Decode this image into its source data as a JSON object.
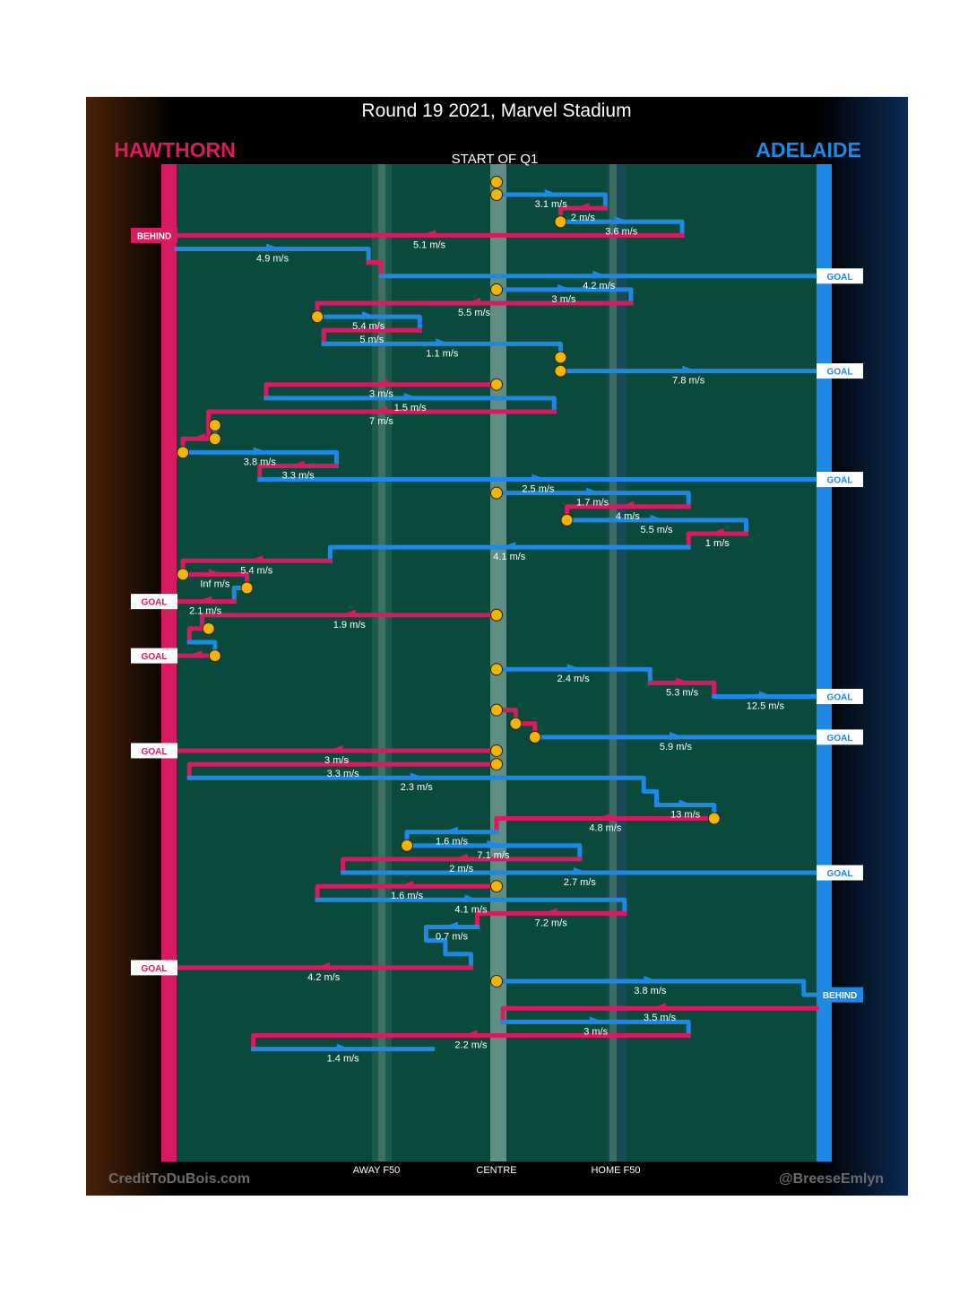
{
  "title": "Round 19 2021, Marvel Stadium",
  "teams": {
    "left": "HAWTHORN",
    "right": "ADELAIDE"
  },
  "start_label": "START OF Q1",
  "axis_labels": {
    "away": "AWAY F50",
    "centre": "CENTRE",
    "home": "HOME F50"
  },
  "credits": {
    "left": "CreditToDuBois.com",
    "right": "@BreeseEmlyn"
  },
  "colors": {
    "hawthorn": "#d81b60",
    "adelaide": "#1e88e5",
    "pitch": "#0a4a3c",
    "ball": "#f4b400"
  },
  "chart_data": {
    "type": "line",
    "description_units": "x = field position across ground from Hawthorn goal (0) to Adelaide goal (100); y = sequence order of chains (0 = start of Q1, 100 = end); labels = ball speed",
    "xlabel_ticks": [
      "AWAY F50",
      "CENTRE",
      "HOME F50"
    ],
    "xlim": [
      0,
      100
    ],
    "ylim": [
      0,
      100
    ],
    "segments": [
      {
        "team": "adelaide",
        "pts": [
          [
            50,
            0
          ],
          [
            50,
            1.3
          ]
        ],
        "ball": "start"
      },
      {
        "team": "adelaide",
        "pts": [
          [
            50,
            1.3
          ],
          [
            67,
            1.3
          ],
          [
            67,
            2.7
          ]
        ],
        "speed": "3.1 m/s",
        "ball": "start"
      },
      {
        "team": "hawthorn",
        "pts": [
          [
            67,
            2.7
          ],
          [
            60,
            2.7
          ],
          [
            60,
            4.1
          ]
        ],
        "speed": "2 m/s",
        "ball": "end"
      },
      {
        "team": "adelaide",
        "pts": [
          [
            60,
            4.1
          ],
          [
            79,
            4.1
          ],
          [
            79,
            5.5
          ]
        ],
        "speed": "3.6 m/s"
      },
      {
        "team": "hawthorn",
        "pts": [
          [
            79,
            5.5
          ],
          [
            0,
            5.5
          ]
        ],
        "speed": "5.1 m/s",
        "result": "BEHIND",
        "result_side": "left"
      },
      {
        "team": "adelaide",
        "pts": [
          [
            0,
            6.9
          ],
          [
            30,
            6.9
          ],
          [
            30,
            8.3
          ]
        ],
        "speed": "4.9 m/s"
      },
      {
        "team": "hawthorn",
        "pts": [
          [
            30,
            8.3
          ],
          [
            32,
            8.3
          ],
          [
            32,
            9.7
          ]
        ]
      },
      {
        "team": "adelaide",
        "pts": [
          [
            32,
            9.7
          ],
          [
            100,
            9.7
          ]
        ],
        "speed": "4.2 m/s",
        "result": "GOAL",
        "result_side": "right"
      },
      {
        "team": "adelaide",
        "pts": [
          [
            50,
            11.1
          ],
          [
            71,
            11.1
          ],
          [
            71,
            12.5
          ]
        ],
        "speed": "3 m/s",
        "ball": "start"
      },
      {
        "team": "hawthorn",
        "pts": [
          [
            71,
            12.5
          ],
          [
            22,
            12.5
          ],
          [
            22,
            13.9
          ]
        ],
        "speed": "5.5 m/s"
      },
      {
        "team": "adelaide",
        "pts": [
          [
            22,
            13.9
          ],
          [
            38,
            13.9
          ],
          [
            38,
            15.3
          ]
        ],
        "speed": "5.4 m/s",
        "ball": "start"
      },
      {
        "team": "hawthorn",
        "pts": [
          [
            38,
            15.3
          ],
          [
            23,
            15.3
          ],
          [
            23,
            16.7
          ]
        ],
        "speed": "5 m/s"
      },
      {
        "team": "adelaide",
        "pts": [
          [
            23,
            16.7
          ],
          [
            60,
            16.7
          ],
          [
            60,
            18.1
          ]
        ],
        "speed": "1.1 m/s",
        "ball": "end"
      },
      {
        "team": "adelaide",
        "pts": [
          [
            60,
            19.5
          ],
          [
            100,
            19.5
          ]
        ],
        "speed": "7.8 m/s",
        "ball": "start",
        "result": "GOAL",
        "result_side": "right"
      },
      {
        "team": "hawthorn",
        "pts": [
          [
            50,
            20.9
          ],
          [
            14,
            20.9
          ],
          [
            14,
            22.3
          ]
        ],
        "speed": "3 m/s",
        "ball": "start"
      },
      {
        "team": "adelaide",
        "pts": [
          [
            14,
            22.3
          ],
          [
            59,
            22.3
          ],
          [
            59,
            23.7
          ]
        ],
        "speed": "1.5 m/s"
      },
      {
        "team": "hawthorn",
        "pts": [
          [
            59,
            23.7
          ],
          [
            5,
            23.7
          ],
          [
            5,
            26.5
          ]
        ],
        "speed": "7 m/s"
      },
      {
        "team": "adelaide",
        "pts": [
          [
            6,
            25.1
          ],
          [
            6,
            26.5
          ]
        ],
        "ball": "start"
      },
      {
        "team": "hawthorn",
        "pts": [
          [
            6,
            26.5
          ],
          [
            1,
            26.5
          ],
          [
            1,
            27.9
          ]
        ],
        "ball": "start"
      },
      {
        "team": "adelaide",
        "pts": [
          [
            1,
            27.9
          ],
          [
            25,
            27.9
          ],
          [
            25,
            29.3
          ]
        ],
        "speed": "3.8 m/s",
        "ball": "start"
      },
      {
        "team": "hawthorn",
        "pts": [
          [
            25,
            29.3
          ],
          [
            13,
            29.3
          ],
          [
            13,
            30.7
          ]
        ],
        "speed": "3.3 m/s"
      },
      {
        "team": "adelaide",
        "pts": [
          [
            13,
            30.7
          ],
          [
            100,
            30.7
          ]
        ],
        "speed": "2.5 m/s",
        "result": "GOAL",
        "result_side": "right"
      },
      {
        "team": "adelaide",
        "pts": [
          [
            50,
            32.1
          ],
          [
            80,
            32.1
          ],
          [
            80,
            33.5
          ]
        ],
        "speed": "1.7 m/s",
        "ball": "start"
      },
      {
        "team": "hawthorn",
        "pts": [
          [
            80,
            33.5
          ],
          [
            61,
            33.5
          ],
          [
            61,
            34.9
          ]
        ],
        "speed": "4 m/s",
        "ball": "end"
      },
      {
        "team": "adelaide",
        "pts": [
          [
            61,
            34.9
          ],
          [
            89,
            34.9
          ],
          [
            89,
            36.3
          ]
        ],
        "speed": "5.5 m/s"
      },
      {
        "team": "hawthorn",
        "pts": [
          [
            89,
            36.3
          ],
          [
            80,
            36.3
          ],
          [
            80,
            37.7
          ]
        ],
        "speed": "1 m/s"
      },
      {
        "team": "adelaide",
        "pts": [
          [
            80,
            37.7
          ],
          [
            24,
            37.7
          ],
          [
            24,
            39.1
          ]
        ],
        "speed": "4.1 m/s"
      },
      {
        "team": "hawthorn",
        "pts": [
          [
            24,
            39.1
          ],
          [
            1,
            39.1
          ],
          [
            1,
            40.5
          ]
        ],
        "speed": "5.4 m/s"
      },
      {
        "team": "hawthorn",
        "pts": [
          [
            1,
            40.5
          ],
          [
            11,
            40.5
          ],
          [
            11,
            41.9
          ]
        ],
        "speed": "Inf m/s",
        "ball": "start"
      },
      {
        "team": "adelaide",
        "pts": [
          [
            11,
            41.9
          ],
          [
            9,
            41.9
          ],
          [
            9,
            43.3
          ]
        ],
        "ball": "start"
      },
      {
        "team": "hawthorn",
        "pts": [
          [
            9,
            43.3
          ],
          [
            0,
            43.3
          ]
        ],
        "speed": "2.1 m/s",
        "result": "GOAL",
        "result_side": "left"
      },
      {
        "team": "hawthorn",
        "pts": [
          [
            50,
            44.7
          ],
          [
            4,
            44.7
          ],
          [
            4,
            46.1
          ]
        ],
        "speed": "1.9 m/s",
        "ball": "start"
      },
      {
        "team": "hawthorn",
        "pts": [
          [
            5,
            46.1
          ],
          [
            2,
            46.1
          ],
          [
            2,
            47.5
          ]
        ],
        "ball": "start"
      },
      {
        "team": "adelaide",
        "pts": [
          [
            2,
            47.5
          ],
          [
            6,
            47.5
          ],
          [
            6,
            48.9
          ]
        ]
      },
      {
        "team": "hawthorn",
        "pts": [
          [
            6,
            48.9
          ],
          [
            0,
            48.9
          ]
        ],
        "result": "GOAL",
        "result_side": "left",
        "ball": "start"
      },
      {
        "team": "adelaide",
        "pts": [
          [
            50,
            50.3
          ],
          [
            74,
            50.3
          ],
          [
            74,
            51.7
          ]
        ],
        "speed": "2.4 m/s",
        "ball": "start"
      },
      {
        "team": "hawthorn",
        "pts": [
          [
            74,
            51.7
          ],
          [
            84,
            51.7
          ],
          [
            84,
            53.1
          ]
        ],
        "speed": "5.3 m/s"
      },
      {
        "team": "adelaide",
        "pts": [
          [
            84,
            53.1
          ],
          [
            100,
            53.1
          ]
        ],
        "speed": "12.5 m/s",
        "result": "GOAL",
        "result_side": "right"
      },
      {
        "team": "hawthorn",
        "pts": [
          [
            50,
            54.5
          ],
          [
            53,
            54.5
          ],
          [
            53,
            55.9
          ]
        ],
        "ball": "start"
      },
      {
        "team": "hawthorn",
        "pts": [
          [
            53,
            55.9
          ],
          [
            56,
            55.9
          ],
          [
            56,
            57.3
          ]
        ],
        "ball": "start"
      },
      {
        "team": "adelaide",
        "pts": [
          [
            56,
            57.3
          ],
          [
            100,
            57.3
          ]
        ],
        "speed": "5.9 m/s",
        "ball": "start",
        "result": "GOAL",
        "result_side": "right"
      },
      {
        "team": "hawthorn",
        "pts": [
          [
            50,
            58.7
          ],
          [
            0,
            58.7
          ]
        ],
        "speed": "3 m/s",
        "ball": "start",
        "result": "GOAL",
        "result_side": "left"
      },
      {
        "team": "hawthorn",
        "pts": [
          [
            50,
            60.1
          ],
          [
            2,
            60.1
          ],
          [
            2,
            61.5
          ]
        ],
        "speed": "3.3 m/s",
        "ball": "start"
      },
      {
        "team": "adelaide",
        "pts": [
          [
            2,
            61.5
          ],
          [
            73,
            61.5
          ],
          [
            73,
            62.9
          ],
          [
            75,
            62.9
          ],
          [
            75,
            64.3
          ]
        ],
        "speed": "2.3 m/s"
      },
      {
        "team": "adelaide",
        "pts": [
          [
            75,
            64.3
          ],
          [
            84,
            64.3
          ],
          [
            84,
            65.7
          ]
        ],
        "speed": "13 m/s",
        "ball": "end"
      },
      {
        "team": "hawthorn",
        "pts": [
          [
            84,
            65.7
          ],
          [
            50,
            65.7
          ],
          [
            50,
            67.1
          ]
        ],
        "speed": "4.8 m/s"
      },
      {
        "team": "adelaide",
        "pts": [
          [
            50,
            67.1
          ],
          [
            36,
            67.1
          ],
          [
            36,
            68.5
          ]
        ],
        "speed": "1.6 m/s"
      },
      {
        "team": "adelaide",
        "pts": [
          [
            36,
            68.5
          ],
          [
            63,
            68.5
          ],
          [
            63,
            69.9
          ]
        ],
        "speed": "7.1 m/s",
        "ball": "start"
      },
      {
        "team": "hawthorn",
        "pts": [
          [
            63,
            69.9
          ],
          [
            26,
            69.9
          ],
          [
            26,
            71.3
          ]
        ],
        "speed": "2 m/s"
      },
      {
        "team": "adelaide",
        "pts": [
          [
            26,
            71.3
          ],
          [
            100,
            71.3
          ]
        ],
        "speed": "2.7 m/s",
        "result": "GOAL",
        "result_side": "right"
      },
      {
        "team": "hawthorn",
        "pts": [
          [
            50,
            72.7
          ],
          [
            22,
            72.7
          ],
          [
            22,
            74.1
          ]
        ],
        "speed": "1.6 m/s",
        "ball": "start"
      },
      {
        "team": "adelaide",
        "pts": [
          [
            22,
            74.1
          ],
          [
            70,
            74.1
          ],
          [
            70,
            75.5
          ]
        ],
        "speed": "4.1 m/s"
      },
      {
        "team": "hawthorn",
        "pts": [
          [
            70,
            75.5
          ],
          [
            47,
            75.5
          ],
          [
            47,
            76.9
          ]
        ],
        "speed": "7.2 m/s"
      },
      {
        "team": "adelaide",
        "pts": [
          [
            47,
            76.9
          ],
          [
            39,
            76.9
          ],
          [
            39,
            78.3
          ],
          [
            42,
            78.3
          ],
          [
            42,
            79.7
          ],
          [
            46,
            79.7
          ],
          [
            46,
            81.1
          ]
        ],
        "speed": "0.7 m/s"
      },
      {
        "team": "hawthorn",
        "pts": [
          [
            46,
            81.1
          ],
          [
            0,
            81.1
          ]
        ],
        "speed": "4.2 m/s",
        "result": "GOAL",
        "result_side": "left"
      },
      {
        "team": "adelaide",
        "pts": [
          [
            50,
            82.5
          ],
          [
            98,
            82.5
          ],
          [
            98,
            83.9
          ],
          [
            100,
            83.9
          ]
        ],
        "speed": "3.8 m/s",
        "ball": "start",
        "result": "BEHIND",
        "result_side": "right"
      },
      {
        "team": "hawthorn",
        "pts": [
          [
            100,
            85.3
          ],
          [
            51,
            85.3
          ],
          [
            51,
            86.7
          ]
        ],
        "speed": "3.5 m/s"
      },
      {
        "team": "adelaide",
        "pts": [
          [
            51,
            86.7
          ],
          [
            80,
            86.7
          ],
          [
            80,
            88.1
          ]
        ],
        "speed": "3 m/s"
      },
      {
        "team": "hawthorn",
        "pts": [
          [
            80,
            88.1
          ],
          [
            12,
            88.1
          ],
          [
            12,
            89.5
          ]
        ],
        "speed": "2.2 m/s"
      },
      {
        "team": "adelaide",
        "pts": [
          [
            12,
            89.5
          ],
          [
            40,
            89.5
          ]
        ],
        "speed": "1.4 m/s"
      }
    ]
  }
}
